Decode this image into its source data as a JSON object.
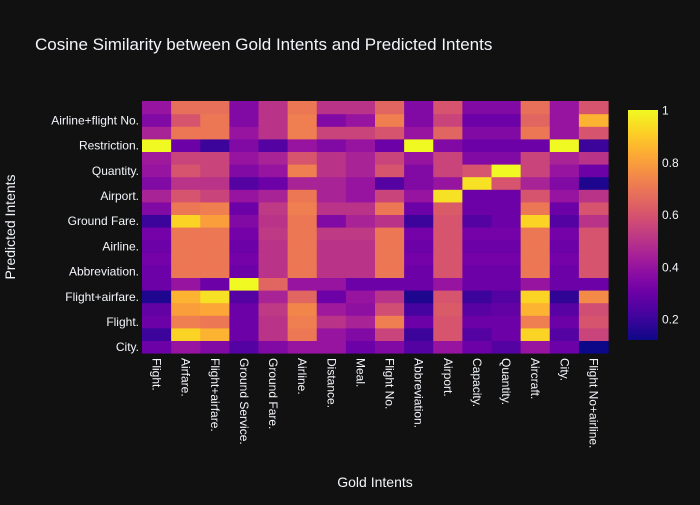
{
  "chart_data": {
    "type": "heatmap",
    "title": "Cosine Similarity between Gold Intents and Predicted Intents",
    "xlabel": "Gold Intents",
    "ylabel": "Predicted Intents",
    "x_categories": [
      "Flight.",
      "Airfare.",
      "Flight+airfare.",
      "Ground Service.",
      "Ground Fare.",
      "Airline.",
      "Distance.",
      "Meal.",
      "Flight No.",
      "Abbreviation.",
      "Airport.",
      "Capacity.",
      "Quantity.",
      "Aircraft.",
      "City.",
      "Flight No+airline."
    ],
    "y_categories": [
      "City.",
      "",
      "Flight.",
      "",
      "Flight+airfare.",
      "",
      "Abbreviation.",
      "",
      "Airline.",
      "",
      "Ground Fare.",
      "",
      "Airport.",
      "",
      "Quantity.",
      "",
      "Restriction.",
      "",
      "Airline+flight No.",
      ""
    ],
    "y_tick_labels": [
      "City.",
      "Flight.",
      "Flight+airfare.",
      "Abbreviation.",
      "Airline.",
      "Ground Fare.",
      "Airport.",
      "Quantity.",
      "Restriction.",
      "Airline+flight No."
    ],
    "z": [
      [
        0.3,
        0.4,
        0.35,
        0.25,
        0.35,
        0.4,
        0.4,
        0.3,
        0.35,
        0.25,
        0.4,
        0.3,
        0.25,
        0.4,
        0.3,
        0.12
      ],
      [
        0.2,
        0.92,
        0.85,
        0.3,
        0.5,
        0.7,
        0.4,
        0.35,
        0.55,
        0.2,
        0.6,
        0.25,
        0.3,
        0.92,
        0.25,
        0.55
      ],
      [
        0.3,
        0.72,
        0.7,
        0.3,
        0.5,
        0.72,
        0.5,
        0.45,
        0.72,
        0.3,
        0.6,
        0.3,
        0.3,
        0.72,
        0.3,
        0.6
      ],
      [
        0.28,
        0.8,
        0.82,
        0.3,
        0.52,
        0.74,
        0.42,
        0.38,
        0.58,
        0.22,
        0.62,
        0.26,
        0.28,
        0.85,
        0.26,
        0.58
      ],
      [
        0.15,
        0.85,
        0.95,
        0.25,
        0.45,
        0.65,
        0.3,
        0.4,
        0.5,
        0.15,
        0.6,
        0.2,
        0.25,
        0.92,
        0.18,
        0.75
      ],
      [
        0.3,
        0.4,
        0.3,
        1.0,
        0.65,
        0.4,
        0.4,
        0.3,
        0.3,
        0.3,
        0.4,
        0.3,
        0.3,
        0.4,
        0.3,
        0.3
      ],
      [
        0.3,
        0.7,
        0.7,
        0.3,
        0.5,
        0.7,
        0.5,
        0.5,
        0.7,
        0.3,
        0.6,
        0.3,
        0.3,
        0.7,
        0.3,
        0.6
      ],
      [
        0.32,
        0.7,
        0.7,
        0.32,
        0.5,
        0.7,
        0.5,
        0.5,
        0.7,
        0.32,
        0.6,
        0.32,
        0.32,
        0.7,
        0.32,
        0.6
      ],
      [
        0.3,
        0.7,
        0.7,
        0.3,
        0.5,
        0.7,
        0.5,
        0.5,
        0.7,
        0.3,
        0.6,
        0.3,
        0.3,
        0.7,
        0.3,
        0.6
      ],
      [
        0.32,
        0.7,
        0.7,
        0.32,
        0.52,
        0.7,
        0.52,
        0.52,
        0.7,
        0.32,
        0.6,
        0.32,
        0.32,
        0.7,
        0.32,
        0.6
      ],
      [
        0.2,
        0.92,
        0.8,
        0.35,
        0.5,
        0.7,
        0.35,
        0.45,
        0.5,
        0.2,
        0.6,
        0.25,
        0.3,
        0.92,
        0.25,
        0.5
      ],
      [
        0.35,
        0.7,
        0.72,
        0.3,
        0.52,
        0.72,
        0.5,
        0.5,
        0.7,
        0.3,
        0.62,
        0.3,
        0.3,
        0.7,
        0.3,
        0.6
      ],
      [
        0.45,
        0.6,
        0.55,
        0.4,
        0.45,
        0.7,
        0.45,
        0.4,
        0.55,
        0.4,
        0.95,
        0.3,
        0.3,
        0.6,
        0.4,
        0.5
      ],
      [
        0.35,
        0.5,
        0.5,
        0.25,
        0.3,
        0.45,
        0.45,
        0.4,
        0.25,
        0.35,
        0.4,
        0.95,
        0.6,
        0.45,
        0.35,
        0.15
      ],
      [
        0.4,
        0.6,
        0.55,
        0.35,
        0.4,
        0.72,
        0.5,
        0.45,
        0.6,
        0.35,
        0.55,
        0.6,
        1.0,
        0.55,
        0.4,
        0.3
      ],
      [
        0.42,
        0.55,
        0.55,
        0.4,
        0.45,
        0.6,
        0.5,
        0.45,
        0.55,
        0.4,
        0.55,
        0.35,
        0.35,
        0.55,
        0.45,
        0.5
      ],
      [
        1.0,
        0.3,
        0.2,
        0.35,
        0.25,
        0.4,
        0.35,
        0.4,
        0.3,
        1.0,
        0.35,
        0.3,
        0.3,
        0.3,
        1.0,
        0.2
      ],
      [
        0.45,
        0.7,
        0.7,
        0.4,
        0.5,
        0.72,
        0.55,
        0.55,
        0.6,
        0.4,
        0.65,
        0.35,
        0.35,
        0.7,
        0.4,
        0.6
      ],
      [
        0.35,
        0.6,
        0.7,
        0.35,
        0.5,
        0.72,
        0.35,
        0.4,
        0.72,
        0.35,
        0.55,
        0.3,
        0.3,
        0.65,
        0.4,
        0.85
      ],
      [
        0.4,
        0.68,
        0.68,
        0.35,
        0.5,
        0.7,
        0.5,
        0.5,
        0.65,
        0.35,
        0.6,
        0.35,
        0.35,
        0.68,
        0.4,
        0.6
      ]
    ],
    "zlim": [
      0.12,
      1.0
    ],
    "colorscale": "plasma",
    "colorbar_ticks": [
      "0.2",
      "0.4",
      "0.6",
      "0.8",
      "1"
    ],
    "colorbar_tick_values": [
      0.2,
      0.4,
      0.6,
      0.8,
      1.0
    ],
    "grid": false,
    "legend": "none"
  },
  "colors": {
    "background": "#111111",
    "text": "#f2f5fa"
  }
}
